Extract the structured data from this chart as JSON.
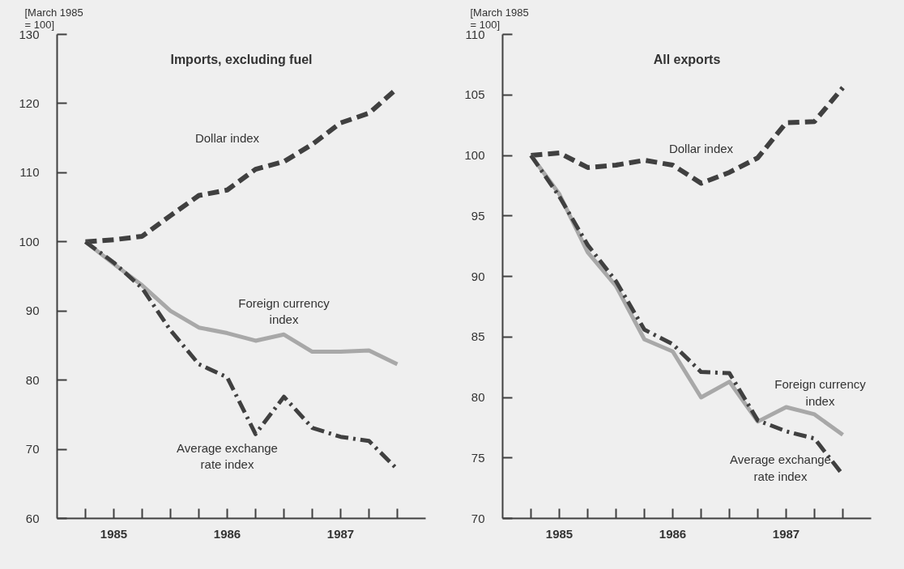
{
  "chart_data": [
    {
      "type": "line",
      "title": "Imports, excluding fuel",
      "ylabel": "[March 1985\n= 100]",
      "x": [
        1985.0,
        1985.25,
        1985.5,
        1985.75,
        1986.0,
        1986.25,
        1986.5,
        1986.75,
        1987.0,
        1987.25,
        1987.5,
        1987.75
      ],
      "series": [
        {
          "name": "Dollar index",
          "color": "#404040",
          "line_style": "dashed",
          "values": [
            100,
            100.3,
            100.8,
            103.8,
            106.7,
            107.5,
            110.5,
            111.6,
            114.1,
            117.2,
            118.6,
            122.2
          ]
        },
        {
          "name": "Foreign currency\nindex",
          "color": "#a8a8a8",
          "line_style": "solid",
          "values": [
            100,
            96.8,
            93.7,
            90,
            87.6,
            86.8,
            85.7,
            86.6,
            84.1,
            84.1,
            84.3,
            82.3
          ]
        },
        {
          "name": "Average exchange\nrate index",
          "color": "#404040",
          "line_style": "dashdot",
          "values": [
            100,
            97.0,
            93.3,
            87.2,
            82.3,
            80.4,
            72.2,
            77.6,
            73.1,
            71.8,
            71.2,
            67.1
          ]
        }
      ],
      "xlim": [
        1984.75,
        1988.0
      ],
      "xticks": [
        {
          "value": 1985.0,
          "label": null
        },
        {
          "value": 1985.25,
          "label": "1985"
        },
        {
          "value": 1985.5,
          "label": null
        },
        {
          "value": 1985.75,
          "label": null
        },
        {
          "value": 1986.0,
          "label": null
        },
        {
          "value": 1986.25,
          "label": "1986"
        },
        {
          "value": 1986.5,
          "label": null
        },
        {
          "value": 1986.75,
          "label": null
        },
        {
          "value": 1987.0,
          "label": null
        },
        {
          "value": 1987.25,
          "label": "1987"
        },
        {
          "value": 1987.5,
          "label": null
        },
        {
          "value": 1987.75,
          "label": null
        }
      ],
      "ylim": [
        60,
        130
      ],
      "yticks": [
        60,
        70,
        80,
        90,
        100,
        110,
        120,
        130
      ],
      "grid": false,
      "legend": false
    },
    {
      "type": "line",
      "title": "All exports",
      "ylabel": "[March 1985\n= 100]",
      "x": [
        1985.0,
        1985.25,
        1985.5,
        1985.75,
        1986.0,
        1986.25,
        1986.5,
        1986.75,
        1987.0,
        1987.25,
        1987.5,
        1987.75
      ],
      "series": [
        {
          "name": "Dollar index",
          "color": "#404040",
          "line_style": "dashed",
          "values": [
            100,
            100.2,
            99.0,
            99.2,
            99.6,
            99.2,
            97.7,
            98.6,
            99.8,
            102.7,
            102.8,
            105.6
          ]
        },
        {
          "name": "Foreign currency\nindex",
          "color": "#a8a8a8",
          "line_style": "solid",
          "values": [
            100,
            96.8,
            92.0,
            89.2,
            84.8,
            83.8,
            80.0,
            81.3,
            78.0,
            79.2,
            78.6,
            76.9
          ]
        },
        {
          "name": "Average exchange\nrate index",
          "color": "#404040",
          "line_style": "dashdot",
          "values": [
            100,
            96.6,
            92.6,
            89.6,
            85.6,
            84.4,
            82.1,
            82.0,
            78.1,
            77.2,
            76.6,
            73.6
          ]
        }
      ],
      "xlim": [
        1984.75,
        1988.0
      ],
      "xticks": [
        {
          "value": 1985.0,
          "label": null
        },
        {
          "value": 1985.25,
          "label": "1985"
        },
        {
          "value": 1985.5,
          "label": null
        },
        {
          "value": 1985.75,
          "label": null
        },
        {
          "value": 1986.0,
          "label": null
        },
        {
          "value": 1986.25,
          "label": "1986"
        },
        {
          "value": 1986.5,
          "label": null
        },
        {
          "value": 1986.75,
          "label": null
        },
        {
          "value": 1987.0,
          "label": null
        },
        {
          "value": 1987.25,
          "label": "1987"
        },
        {
          "value": 1987.5,
          "label": null
        },
        {
          "value": 1987.75,
          "label": null
        }
      ],
      "ylim": [
        70,
        110
      ],
      "yticks": [
        70,
        75,
        80,
        85,
        90,
        95,
        100,
        105,
        110
      ],
      "grid": false,
      "legend": false
    }
  ]
}
